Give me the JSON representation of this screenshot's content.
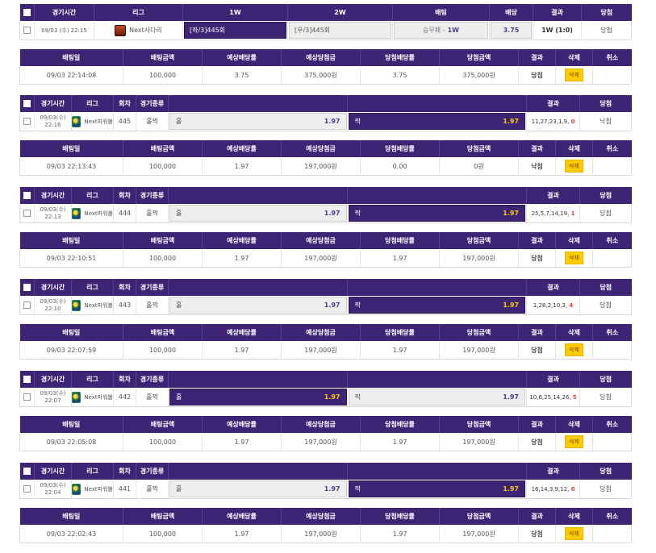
{
  "game_headers_first": [
    "경기시간",
    "리그",
    "1W",
    "2W",
    "배팅",
    "배당",
    "결과",
    "당첨"
  ],
  "game_headers": [
    "경기시간",
    "리그",
    "회차",
    "경기종류",
    "결과",
    "당첨"
  ],
  "detail_headers": [
    "배팅일",
    "배팅금액",
    "예상배당률",
    "예상당첨금",
    "당첨배당률",
    "당첨금액",
    "결과",
    "삭제",
    "취소"
  ],
  "first": {
    "time": "09/03 (수) 22:15",
    "league": "Next사다리",
    "pick1": "[좌/3]445회",
    "pick2": "[우/3]445회",
    "bet_label": "승무패 -",
    "bet_pick": "1W",
    "odds": "3.75",
    "result": "1W (1:0)",
    "status": "당첨",
    "detail": {
      "date": "09/03 22:14:08",
      "amount": "100,000",
      "exp_odds": "3.75",
      "exp_win": "375,000원",
      "win_odds": "3.75",
      "win_amount": "375,000원",
      "result": "당첨",
      "delete": "삭제",
      "cancel": ""
    }
  },
  "games": [
    {
      "date": "09/03(수)",
      "clock": "22:16",
      "league": "Next파워볼",
      "round": "445",
      "kind": "홀짝",
      "left_label": "홀",
      "left_odds": "1.97",
      "right_label": "짝",
      "right_odds": "1.97",
      "selected": "right",
      "result_nums": "11,27,23,1,9,",
      "result_hi": "0",
      "status": "낙첨",
      "detail": {
        "date": "09/03 22:13:43",
        "amount": "100,000",
        "exp_odds": "1.97",
        "exp_win": "197,000원",
        "win_odds": "0.00",
        "win_amount": "0원",
        "result": "낙첨",
        "delete": "삭제",
        "cancel": ""
      }
    },
    {
      "date": "09/03(수)",
      "clock": "22:13",
      "league": "Next파워볼",
      "round": "444",
      "kind": "홀짝",
      "left_label": "홀",
      "left_odds": "1.97",
      "right_label": "짝",
      "right_odds": "1.97",
      "selected": "right",
      "result_nums": "25,5,7,14,19,",
      "result_hi": "1",
      "status": "당첨",
      "detail": {
        "date": "09/03 22:10:51",
        "amount": "100,000",
        "exp_odds": "1.97",
        "exp_win": "197,000원",
        "win_odds": "1.97",
        "win_amount": "197,000원",
        "result": "당첨",
        "delete": "삭제",
        "cancel": ""
      }
    },
    {
      "date": "09/03(수)",
      "clock": "22:10",
      "league": "Next파워볼",
      "round": "443",
      "kind": "홀짝",
      "left_label": "홀",
      "left_odds": "1.97",
      "right_label": "짝",
      "right_odds": "1.97",
      "selected": "right",
      "result_nums": "1,28,2,10,3,",
      "result_hi": "4",
      "status": "당첨",
      "detail": {
        "date": "09/03 22:07:59",
        "amount": "100,000",
        "exp_odds": "1.97",
        "exp_win": "197,000원",
        "win_odds": "1.97",
        "win_amount": "197,000원",
        "result": "당첨",
        "delete": "삭제",
        "cancel": ""
      }
    },
    {
      "date": "09/03(수)",
      "clock": "22:07",
      "league": "Next파워볼",
      "round": "442",
      "kind": "홀짝",
      "left_label": "홀",
      "left_odds": "1.97",
      "right_label": "짝",
      "right_odds": "1.97",
      "selected": "left",
      "result_nums": "10,6,25,14,26,",
      "result_hi": "5",
      "status": "당첨",
      "detail": {
        "date": "09/03 22:05:08",
        "amount": "100,000",
        "exp_odds": "1.97",
        "exp_win": "197,000원",
        "win_odds": "1.97",
        "win_amount": "197,000원",
        "result": "당첨",
        "delete": "삭제",
        "cancel": ""
      }
    },
    {
      "date": "09/03(수)",
      "clock": "22:04",
      "league": "Next파워볼",
      "round": "441",
      "kind": "홀짝",
      "left_label": "홀",
      "left_odds": "1.97",
      "right_label": "짝",
      "right_odds": "1.97",
      "selected": "right",
      "result_nums": "16,14,3,9,12,",
      "result_hi": "6",
      "status": "당첨",
      "detail": {
        "date": "09/03 22:02:43",
        "amount": "100,000",
        "exp_odds": "1.97",
        "exp_win": "197,000원",
        "win_odds": "1.97",
        "win_amount": "197,000원",
        "result": "당첨",
        "delete": "삭제",
        "cancel": ""
      }
    }
  ],
  "colors": {
    "header": "#3d2475",
    "accent": "#ffcc00",
    "win": "#e8412d",
    "lose": "#3a6dd8"
  }
}
